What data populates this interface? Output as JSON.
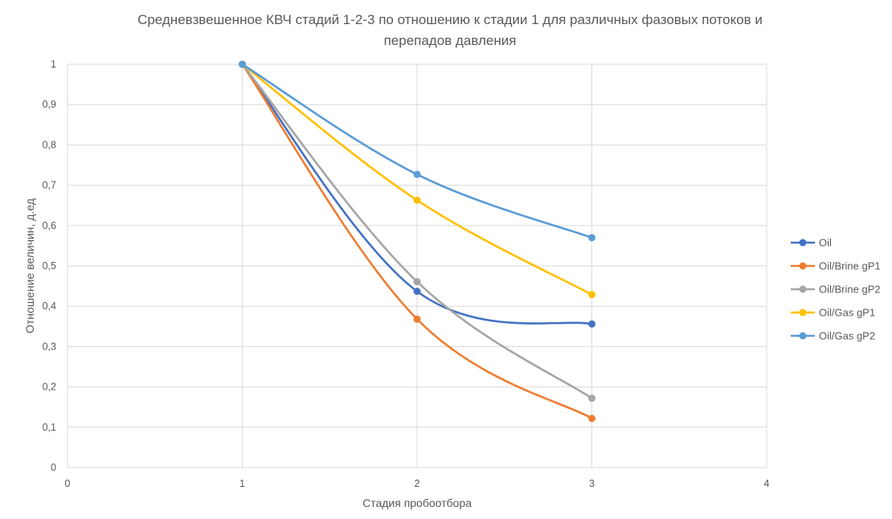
{
  "chart_data": {
    "type": "line",
    "title": [
      "Средневзвешенное КВЧ стадий 1-2-3 по отношению к стадии 1 для различных фазовых потоков и",
      "перепадов давления"
    ],
    "xlabel": "Стадия пробоотбора",
    "ylabel": "Отношение величин, д.ед",
    "xlim": [
      0,
      4
    ],
    "ylim": [
      0,
      1
    ],
    "x_ticks": [
      "0",
      "1",
      "2",
      "3",
      "4"
    ],
    "y_ticks": [
      "0",
      "0,1",
      "0,2",
      "0,3",
      "0,4",
      "0,5",
      "0,6",
      "0,7",
      "0,8",
      "0,9",
      "1"
    ],
    "grid": true,
    "smooth": true,
    "legend_position": "right",
    "x": [
      1,
      2,
      3
    ],
    "series": [
      {
        "name": "Oil",
        "color": "#4472C4",
        "values": [
          1,
          0.437,
          0.356
        ]
      },
      {
        "name": "Oil/Brine gP1",
        "color": "#ED7D31",
        "values": [
          1,
          0.368,
          0.122
        ]
      },
      {
        "name": "Oil/Brine gP2",
        "color": "#A5A5A5",
        "values": [
          1,
          0.461,
          0.172
        ]
      },
      {
        "name": "Oil/Gas gP1",
        "color": "#FFC000",
        "values": [
          1,
          0.663,
          0.429
        ]
      },
      {
        "name": "Oil/Gas gP2",
        "color": "#5B9BD5",
        "values": [
          1,
          0.727,
          0.57
        ]
      }
    ]
  }
}
